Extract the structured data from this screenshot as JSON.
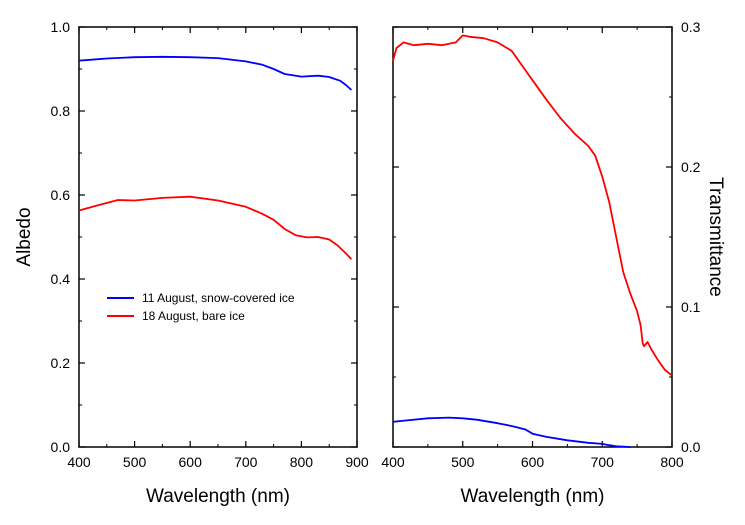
{
  "chart_data": [
    {
      "type": "line",
      "xlabel": "Wavelength (nm)",
      "ylabel": "Albedo",
      "xlim": [
        400,
        900
      ],
      "ylim": [
        0,
        1.0
      ],
      "xticks": [
        "400",
        "500",
        "600",
        "700",
        "800",
        "900"
      ],
      "yticks": [
        "0.0",
        "0.2",
        "0.4",
        "0.6",
        "0.8",
        "1.0"
      ],
      "legend_position": "center-left",
      "grid": false,
      "series": [
        {
          "name": "11 August, snow-covered ice",
          "color": "#0000ff",
          "x": [
            400,
            420,
            450,
            500,
            550,
            600,
            650,
            700,
            730,
            750,
            770,
            800,
            830,
            850,
            870,
            880,
            890
          ],
          "y": [
            0.92,
            0.922,
            0.925,
            0.928,
            0.929,
            0.928,
            0.926,
            0.918,
            0.91,
            0.9,
            0.888,
            0.882,
            0.884,
            0.881,
            0.872,
            0.862,
            0.85
          ]
        },
        {
          "name": "18 August, bare ice",
          "color": "#ff0000",
          "x": [
            400,
            430,
            470,
            500,
            550,
            600,
            650,
            700,
            730,
            750,
            770,
            790,
            810,
            830,
            850,
            865,
            880,
            890
          ],
          "y": [
            0.563,
            0.574,
            0.588,
            0.587,
            0.593,
            0.596,
            0.587,
            0.572,
            0.555,
            0.541,
            0.519,
            0.504,
            0.499,
            0.5,
            0.494,
            0.48,
            0.461,
            0.447
          ]
        }
      ]
    },
    {
      "type": "line",
      "xlabel": "Wavelength (nm)",
      "ylabel": "Transmittance",
      "xlim": [
        400,
        800
      ],
      "ylim": [
        0,
        0.3
      ],
      "xticks": [
        "400",
        "500",
        "600",
        "700",
        "800"
      ],
      "yticks": [
        "0.0",
        "0.1",
        "0.2",
        "0.3"
      ],
      "grid": false,
      "series": [
        {
          "name": "18 August, bare ice",
          "color": "#ff0000",
          "x": [
            400,
            405,
            415,
            430,
            450,
            470,
            490,
            500,
            510,
            530,
            550,
            570,
            590,
            600,
            620,
            640,
            660,
            680,
            690,
            700,
            710,
            720,
            730,
            740,
            750,
            755,
            758,
            760,
            765,
            770,
            780,
            790,
            800
          ],
          "y": [
            0.276,
            0.285,
            0.289,
            0.287,
            0.288,
            0.287,
            0.289,
            0.294,
            0.293,
            0.292,
            0.289,
            0.283,
            0.269,
            0.262,
            0.248,
            0.235,
            0.224,
            0.215,
            0.208,
            0.193,
            0.175,
            0.15,
            0.125,
            0.11,
            0.097,
            0.087,
            0.074,
            0.072,
            0.075,
            0.07,
            0.062,
            0.055,
            0.051
          ]
        },
        {
          "name": "11 August, snow-covered ice",
          "color": "#0000ff",
          "x": [
            400,
            420,
            450,
            480,
            500,
            520,
            550,
            570,
            590,
            600,
            620,
            650,
            680,
            700,
            710,
            720,
            740
          ],
          "y": [
            0.018,
            0.019,
            0.0205,
            0.021,
            0.0205,
            0.0195,
            0.017,
            0.015,
            0.0125,
            0.0095,
            0.0072,
            0.0048,
            0.003,
            0.0022,
            0.0013,
            0.0005,
            0.0
          ]
        }
      ]
    }
  ]
}
